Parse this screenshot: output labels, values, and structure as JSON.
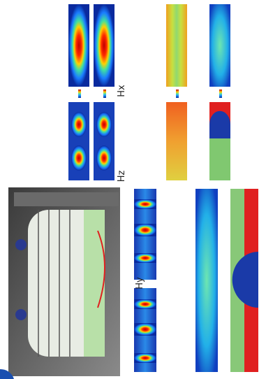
{
  "labels": {
    "hx": "Hx",
    "hy": "Hy",
    "hz": "Hz"
  }
}
